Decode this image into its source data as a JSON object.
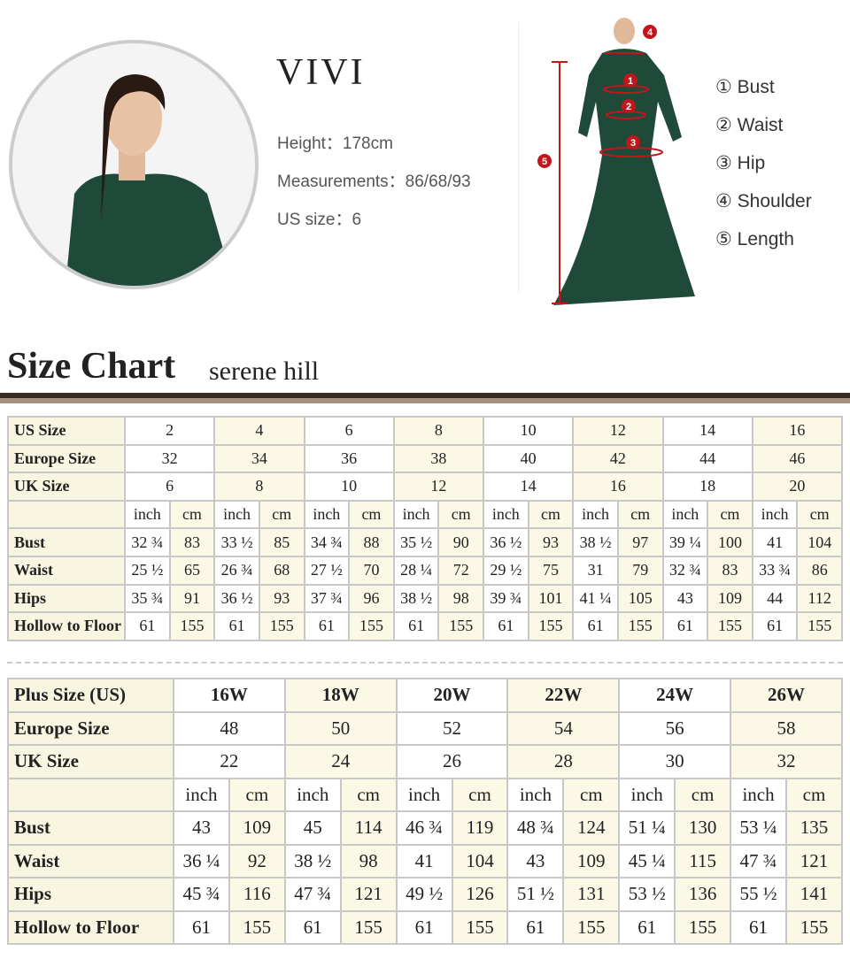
{
  "model": {
    "name": "VIVI",
    "height": "Height：178cm",
    "measurements": "Measurements：86/68/93",
    "us_size": "US size：6"
  },
  "legend": [
    "① Bust",
    "② Waist",
    "③ Hip",
    "④ Shoulder",
    "⑤ Length"
  ],
  "markers": [
    "1",
    "2",
    "3",
    "4",
    "5"
  ],
  "colors": {
    "dress": "#1f4a3a",
    "marker": "#c0161c",
    "cell_yellow": "#fbf9e6"
  },
  "size_chart": {
    "title": "Size Chart",
    "brand": "serene hill"
  },
  "standard": {
    "rows": [
      {
        "label": "US Size",
        "span": true,
        "values": [
          "2",
          "4",
          "6",
          "8",
          "10",
          "12",
          "14",
          "16"
        ]
      },
      {
        "label": "Europe Size",
        "span": true,
        "values": [
          "32",
          "34",
          "36",
          "38",
          "40",
          "42",
          "44",
          "46"
        ]
      },
      {
        "label": "UK Size",
        "span": true,
        "values": [
          "6",
          "8",
          "10",
          "12",
          "14",
          "16",
          "18",
          "20"
        ]
      },
      {
        "label": "",
        "values": [
          "inch",
          "cm",
          "inch",
          "cm",
          "inch",
          "cm",
          "inch",
          "cm",
          "inch",
          "cm",
          "inch",
          "cm",
          "inch",
          "cm",
          "inch",
          "cm"
        ]
      },
      {
        "label": "Bust",
        "values": [
          "32 ¾",
          "83",
          "33 ½",
          "85",
          "34 ¾",
          "88",
          "35 ½",
          "90",
          "36 ½",
          "93",
          "38 ½",
          "97",
          "39 ¼",
          "100",
          "41",
          "104"
        ]
      },
      {
        "label": "Waist",
        "values": [
          "25 ½",
          "65",
          "26 ¾",
          "68",
          "27 ½",
          "70",
          "28 ¼",
          "72",
          "29 ½",
          "75",
          "31",
          "79",
          "32 ¾",
          "83",
          "33 ¾",
          "86"
        ]
      },
      {
        "label": "Hips",
        "values": [
          "35 ¾",
          "91",
          "36 ½",
          "93",
          "37 ¾",
          "96",
          "38 ½",
          "98",
          "39 ¾",
          "101",
          "41 ¼",
          "105",
          "43",
          "109",
          "44",
          "112"
        ]
      },
      {
        "label": "Hollow to Floor",
        "values": [
          "61",
          "155",
          "61",
          "155",
          "61",
          "155",
          "61",
          "155",
          "61",
          "155",
          "61",
          "155",
          "61",
          "155",
          "61",
          "155"
        ]
      }
    ]
  },
  "plus": {
    "rows": [
      {
        "label": "Plus Size (US)",
        "span": true,
        "bold": true,
        "values": [
          "16W",
          "18W",
          "20W",
          "22W",
          "24W",
          "26W"
        ]
      },
      {
        "label": "Europe Size",
        "span": true,
        "values": [
          "48",
          "50",
          "52",
          "54",
          "56",
          "58"
        ]
      },
      {
        "label": "UK Size",
        "span": true,
        "values": [
          "22",
          "24",
          "26",
          "28",
          "30",
          "32"
        ]
      },
      {
        "label": "",
        "values": [
          "inch",
          "cm",
          "inch",
          "cm",
          "inch",
          "cm",
          "inch",
          "cm",
          "inch",
          "cm",
          "inch",
          "cm"
        ]
      },
      {
        "label": "Bust",
        "values": [
          "43",
          "109",
          "45",
          "114",
          "46 ¾",
          "119",
          "48 ¾",
          "124",
          "51 ¼",
          "130",
          "53 ¼",
          "135"
        ]
      },
      {
        "label": "Waist",
        "values": [
          "36 ¼",
          "92",
          "38 ½",
          "98",
          "41",
          "104",
          "43",
          "109",
          "45 ¼",
          "115",
          "47 ¾",
          "121"
        ]
      },
      {
        "label": "Hips",
        "values": [
          "45 ¾",
          "116",
          "47 ¾",
          "121",
          "49 ½",
          "126",
          "51 ½",
          "131",
          "53 ½",
          "136",
          "55 ½",
          "141"
        ]
      },
      {
        "label": "Hollow to Floor",
        "values": [
          "61",
          "155",
          "61",
          "155",
          "61",
          "155",
          "61",
          "155",
          "61",
          "155",
          "61",
          "155"
        ]
      }
    ]
  }
}
